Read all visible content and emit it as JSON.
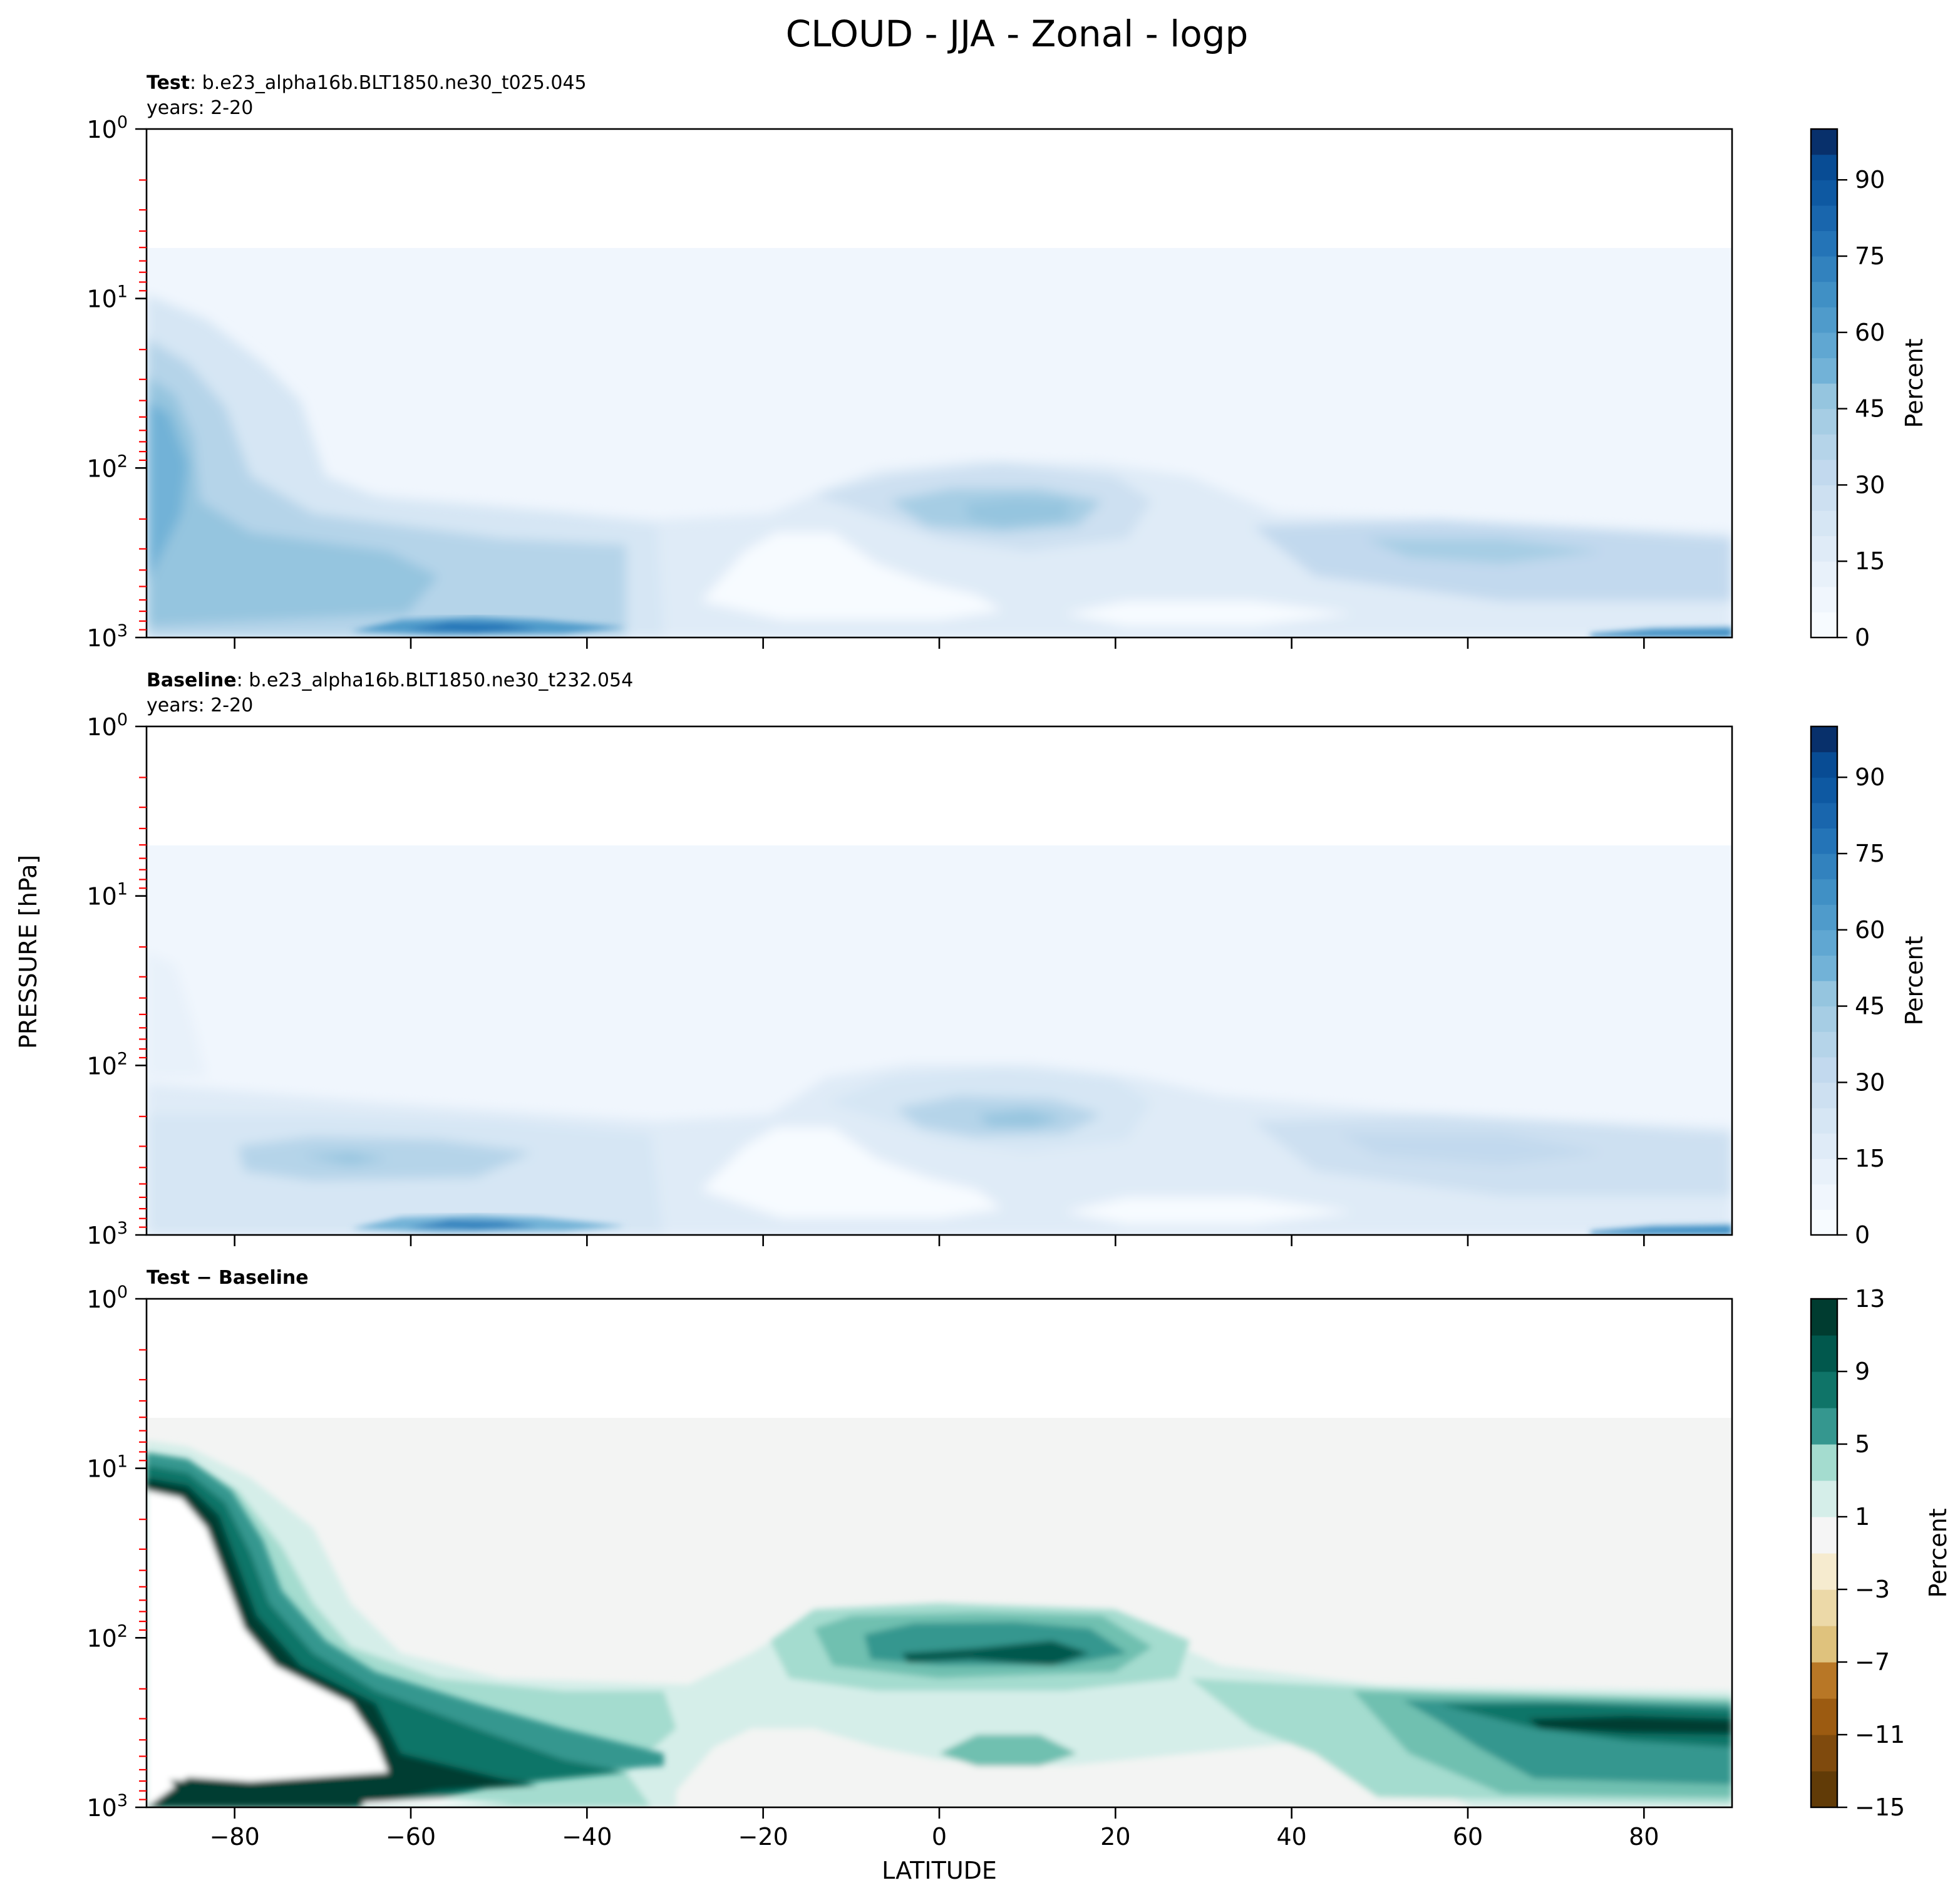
{
  "title": "CLOUD - JJA - Zonal - logp",
  "chart_data": [
    {
      "type": "heatmap",
      "panel": "test",
      "title_bold": "Test",
      "title_rest": ": b.e23_alpha16b.BLT1850.ne30_t025.045",
      "subtitle": "years: 2-20",
      "xlabel": "LATITUDE",
      "ylabel": "PRESSURE [hPa]",
      "xlim": [
        -90,
        90
      ],
      "ylim": [
        1000,
        1
      ],
      "yscale": "log",
      "x_ticks": [
        -80,
        -60,
        -40,
        -20,
        0,
        20,
        40,
        60,
        80
      ],
      "y_ticks": [
        {
          "base": "10",
          "exp": "0"
        },
        {
          "base": "10",
          "exp": "1"
        },
        {
          "base": "10",
          "exp": "2"
        },
        {
          "base": "10",
          "exp": "3"
        }
      ],
      "colorbar": {
        "label": "Percent",
        "cmap": "Blues",
        "vmin": 0,
        "vmax": 100,
        "levels": [
          0,
          5,
          10,
          15,
          20,
          25,
          30,
          35,
          40,
          45,
          50,
          55,
          60,
          65,
          70,
          75,
          80,
          85,
          90,
          95,
          100
        ],
        "ticks": [
          "0",
          "15",
          "30",
          "45",
          "60",
          "75",
          "90"
        ],
        "tick_values": [
          0,
          15,
          30,
          45,
          60,
          75,
          90
        ]
      },
      "features": [
        {
          "lat": -87,
          "p": 70,
          "value": 58
        },
        {
          "lat": -75,
          "p": 200,
          "value": 40
        },
        {
          "lat": -58,
          "p": 900,
          "value": 70
        },
        {
          "lat": -60,
          "p": 400,
          "value": 35
        },
        {
          "lat": 12,
          "p": 180,
          "value": 45
        },
        {
          "lat": 70,
          "p": 300,
          "value": 35
        },
        {
          "lat": 85,
          "p": 980,
          "value": 60
        }
      ]
    },
    {
      "type": "heatmap",
      "panel": "baseline",
      "title_bold": "Baseline",
      "title_rest": ": b.e23_alpha16b.BLT1850.ne30_t232.054",
      "subtitle": "years: 2-20",
      "xlim": [
        -90,
        90
      ],
      "ylim": [
        1000,
        1
      ],
      "yscale": "log",
      "x_ticks": [
        -80,
        -60,
        -40,
        -20,
        0,
        20,
        40,
        60,
        80
      ],
      "y_ticks": [
        {
          "base": "10",
          "exp": "0"
        },
        {
          "base": "10",
          "exp": "1"
        },
        {
          "base": "10",
          "exp": "2"
        },
        {
          "base": "10",
          "exp": "3"
        }
      ],
      "colorbar": {
        "label": "Percent",
        "cmap": "Blues",
        "vmin": 0,
        "vmax": 100,
        "levels": [
          0,
          5,
          10,
          15,
          20,
          25,
          30,
          35,
          40,
          45,
          50,
          55,
          60,
          65,
          70,
          75,
          80,
          85,
          90,
          95,
          100
        ],
        "ticks": [
          "0",
          "15",
          "30",
          "45",
          "60",
          "75",
          "90"
        ],
        "tick_values": [
          0,
          15,
          30,
          45,
          60,
          75,
          90
        ]
      },
      "features": [
        {
          "lat": -65,
          "p": 400,
          "value": 30
        },
        {
          "lat": -58,
          "p": 900,
          "value": 65
        },
        {
          "lat": 12,
          "p": 200,
          "value": 40
        },
        {
          "lat": 70,
          "p": 350,
          "value": 28
        },
        {
          "lat": 85,
          "p": 980,
          "value": 60
        }
      ]
    },
    {
      "type": "heatmap",
      "panel": "difference",
      "title_bold": "Test − Baseline",
      "xlim": [
        -90,
        90
      ],
      "ylim": [
        1000,
        1
      ],
      "yscale": "log",
      "x_ticks": [
        -80,
        -60,
        -40,
        -20,
        0,
        20,
        40,
        60,
        80
      ],
      "y_ticks": [
        {
          "base": "10",
          "exp": "0"
        },
        {
          "base": "10",
          "exp": "1"
        },
        {
          "base": "10",
          "exp": "2"
        },
        {
          "base": "10",
          "exp": "3"
        }
      ],
      "colorbar": {
        "label": "Percent",
        "cmap": "BrBG",
        "vmin": -15,
        "vmax": 13,
        "levels": [
          -15,
          -13,
          -11,
          -9,
          -7,
          -5,
          -3,
          -1,
          1,
          3,
          5,
          7,
          9,
          11,
          13
        ],
        "ticks": [
          "−15",
          "−11",
          "−7",
          "−3",
          "1",
          "5",
          "9",
          "13"
        ],
        "tick_values": [
          -15,
          -11,
          -7,
          -3,
          1,
          5,
          9,
          13
        ]
      },
      "features": [
        {
          "lat": -85,
          "p": 20,
          "value": 13
        },
        {
          "lat": -55,
          "p": 500,
          "value": 13
        },
        {
          "lat": 10,
          "p": 150,
          "value": 11
        },
        {
          "lat": 75,
          "p": 300,
          "value": 13
        }
      ]
    }
  ],
  "colors": {
    "blues": [
      "#f7fbff",
      "#f0f6fd",
      "#e8f1fa",
      "#dfebf7",
      "#d6e6f4",
      "#cde0f1",
      "#c2d9ee",
      "#b5d4e9",
      "#a6cde4",
      "#95c5df",
      "#83bbdb",
      "#72b2d7",
      "#60a7d2",
      "#4f9bcb",
      "#4090c5",
      "#3282be",
      "#2474b7",
      "#1966ad",
      "#0e59a2",
      "#084c94",
      "#08306b"
    ],
    "brbg": [
      "#613b07",
      "#7f4a0d",
      "#9c5b11",
      "#b87726",
      "#cd9a4e",
      "#dfc27d",
      "#ecd9a8",
      "#f6ebcf",
      "#f5f5f5",
      "#d5eee9",
      "#a4dccf",
      "#6fc0b0",
      "#35978f",
      "#0f7468",
      "#01584d",
      "#003c30"
    ],
    "diff_background": "#f3f4f3",
    "minor_tick": "#ff0000"
  }
}
